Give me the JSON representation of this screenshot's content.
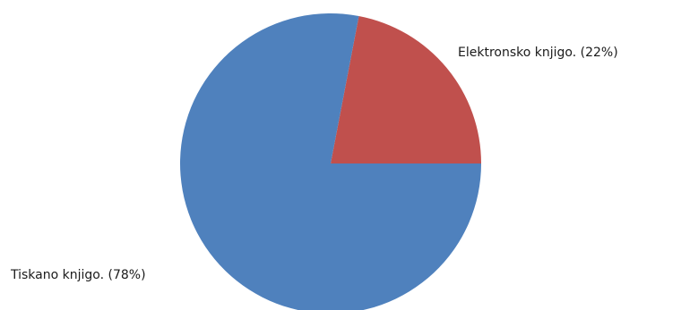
{
  "chart_data": {
    "type": "pie",
    "title": "",
    "slices": [
      {
        "label": "Elektronsko knjigo. (22%)",
        "value": 22,
        "color": "#c0504d"
      },
      {
        "label": "Tiskano knjigo. (78%)",
        "value": 78,
        "color": "#4f81bd"
      }
    ],
    "start_angle_deg": 0,
    "direction": "counterclockwise",
    "legend": "none"
  }
}
